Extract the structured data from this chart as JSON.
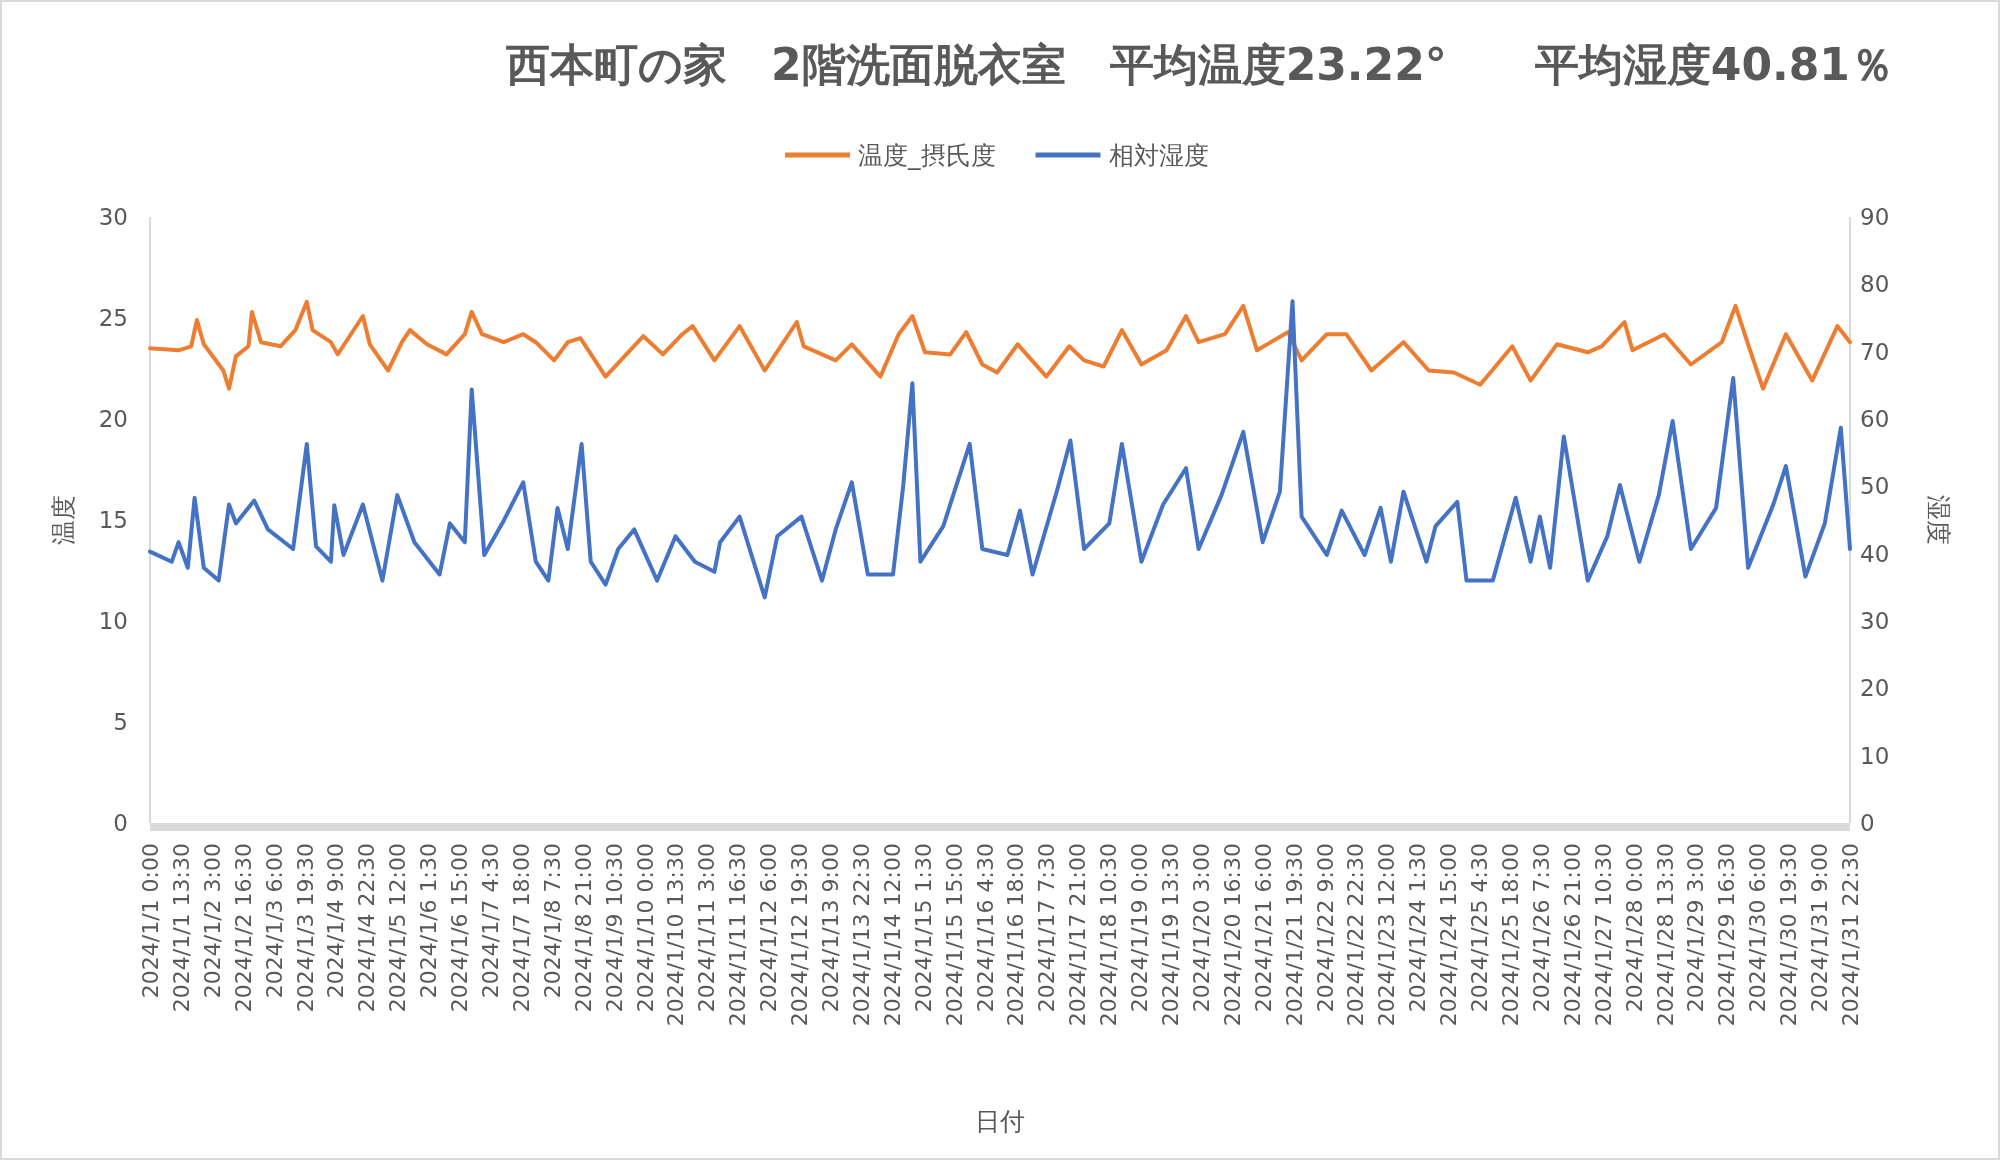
{
  "chart_data": {
    "type": "line",
    "title": "西本町の家　2階洗面脱衣室　平均温度23.22°　　平均湿度40.81％",
    "xlabel": "日付",
    "ylabel": "温度",
    "y2label": "湿度",
    "legend": "top",
    "xlim": [
      "2024-01-01T00:00",
      "2024-01-31T22:30"
    ],
    "ylim": [
      0,
      30
    ],
    "yticks": [
      0,
      5,
      10,
      15,
      20,
      25,
      30
    ],
    "y2lim": [
      0,
      90
    ],
    "y2ticks": [
      0,
      10,
      20,
      30,
      40,
      50,
      60,
      70,
      80,
      90
    ],
    "xticks": [
      {
        "value": "2024-01-01T00:00",
        "label": "2024/1/1 0:00"
      },
      {
        "value": "2024-01-01T13:30",
        "label": "2024/1/1 13:30"
      },
      {
        "value": "2024-01-02T03:00",
        "label": "2024/1/2 3:00"
      },
      {
        "value": "2024-01-02T16:30",
        "label": "2024/1/2 16:30"
      },
      {
        "value": "2024-01-03T06:00",
        "label": "2024/1/3 6:00"
      },
      {
        "value": "2024-01-03T19:30",
        "label": "2024/1/3 19:30"
      },
      {
        "value": "2024-01-04T09:00",
        "label": "2024/1/4 9:00"
      },
      {
        "value": "2024-01-04T22:30",
        "label": "2024/1/4 22:30"
      },
      {
        "value": "2024-01-05T12:00",
        "label": "2024/1/5 12:00"
      },
      {
        "value": "2024-01-06T01:30",
        "label": "2024/1/6 1:30"
      },
      {
        "value": "2024-01-06T15:00",
        "label": "2024/1/6 15:00"
      },
      {
        "value": "2024-01-07T04:30",
        "label": "2024/1/7 4:30"
      },
      {
        "value": "2024-01-07T18:00",
        "label": "2024/1/7 18:00"
      },
      {
        "value": "2024-01-08T07:30",
        "label": "2024/1/8 7:30"
      },
      {
        "value": "2024-01-08T21:00",
        "label": "2024/1/8 21:00"
      },
      {
        "value": "2024-01-09T10:30",
        "label": "2024/1/9 10:30"
      },
      {
        "value": "2024-01-10T00:00",
        "label": "2024/1/10 0:00"
      },
      {
        "value": "2024-01-10T13:30",
        "label": "2024/1/10 13:30"
      },
      {
        "value": "2024-01-11T03:00",
        "label": "2024/1/11 3:00"
      },
      {
        "value": "2024-01-11T16:30",
        "label": "2024/1/11 16:30"
      },
      {
        "value": "2024-01-12T06:00",
        "label": "2024/1/12 6:00"
      },
      {
        "value": "2024-01-12T19:30",
        "label": "2024/1/12 19:30"
      },
      {
        "value": "2024-01-13T09:00",
        "label": "2024/1/13 9:00"
      },
      {
        "value": "2024-01-13T22:30",
        "label": "2024/1/13 22:30"
      },
      {
        "value": "2024-01-14T12:00",
        "label": "2024/1/14 12:00"
      },
      {
        "value": "2024-01-15T01:30",
        "label": "2024/1/15 1:30"
      },
      {
        "value": "2024-01-15T15:00",
        "label": "2024/1/15 15:00"
      },
      {
        "value": "2024-01-16T04:30",
        "label": "2024/1/16 4:30"
      },
      {
        "value": "2024-01-16T18:00",
        "label": "2024/1/16 18:00"
      },
      {
        "value": "2024-01-17T07:30",
        "label": "2024/1/17 7:30"
      },
      {
        "value": "2024-01-17T21:00",
        "label": "2024/1/17 21:00"
      },
      {
        "value": "2024-01-18T10:30",
        "label": "2024/1/18 10:30"
      },
      {
        "value": "2024-01-19T00:00",
        "label": "2024/1/19 0:00"
      },
      {
        "value": "2024-01-19T13:30",
        "label": "2024/1/19 13:30"
      },
      {
        "value": "2024-01-20T03:00",
        "label": "2024/1/20 3:00"
      },
      {
        "value": "2024-01-20T16:30",
        "label": "2024/1/20 16:30"
      },
      {
        "value": "2024-01-21T06:00",
        "label": "2024/1/21 6:00"
      },
      {
        "value": "2024-01-21T19:30",
        "label": "2024/1/21 19:30"
      },
      {
        "value": "2024-01-22T09:00",
        "label": "2024/1/22 9:00"
      },
      {
        "value": "2024-01-22T22:30",
        "label": "2024/1/22 22:30"
      },
      {
        "value": "2024-01-23T12:00",
        "label": "2024/1/23 12:00"
      },
      {
        "value": "2024-01-24T01:30",
        "label": "2024/1/24 1:30"
      },
      {
        "value": "2024-01-24T15:00",
        "label": "2024/1/24 15:00"
      },
      {
        "value": "2024-01-25T04:30",
        "label": "2024/1/25 4:30"
      },
      {
        "value": "2024-01-25T18:00",
        "label": "2024/1/25 18:00"
      },
      {
        "value": "2024-01-26T07:30",
        "label": "2024/1/26 7:30"
      },
      {
        "value": "2024-01-26T21:00",
        "label": "2024/1/26 21:00"
      },
      {
        "value": "2024-01-27T10:30",
        "label": "2024/1/27 10:30"
      },
      {
        "value": "2024-01-28T00:00",
        "label": "2024/1/28 0:00"
      },
      {
        "value": "2024-01-28T13:30",
        "label": "2024/1/28 13:30"
      },
      {
        "value": "2024-01-29T03:00",
        "label": "2024/1/29 3:00"
      },
      {
        "value": "2024-01-29T16:30",
        "label": "2024/1/29 16:30"
      },
      {
        "value": "2024-01-30T06:00",
        "label": "2024/1/30 6:00"
      },
      {
        "value": "2024-01-30T19:30",
        "label": "2024/1/30 19:30"
      },
      {
        "value": "2024-01-31T09:00",
        "label": "2024/1/31 9:00"
      },
      {
        "value": "2024-01-31T22:30",
        "label": "2024/1/31 22:30"
      }
    ],
    "series": [
      {
        "name": "温度_摂氏度",
        "color": "#ed7d31",
        "x": [
          "2024-01-01T00:00",
          "2024-01-01T12:30",
          "2024-01-01T18:00",
          "2024-01-01T20:30",
          "2024-01-01T23:30",
          "2024-01-02T08:00",
          "2024-01-02T10:30",
          "2024-01-02T13:30",
          "2024-01-02T19:00",
          "2024-01-02T20:30",
          "2024-01-03T00:30",
          "2024-01-03T09:00",
          "2024-01-03T15:30",
          "2024-01-03T20:30",
          "2024-01-03T23:00",
          "2024-01-04T07:00",
          "2024-01-04T10:00",
          "2024-01-04T21:00",
          "2024-01-05T00:00",
          "2024-01-05T08:00",
          "2024-01-05T14:00",
          "2024-01-05T17:30",
          "2024-01-06T01:00",
          "2024-01-06T09:30",
          "2024-01-06T17:30",
          "2024-01-06T20:30",
          "2024-01-07T01:00",
          "2024-01-07T10:30",
          "2024-01-07T19:00",
          "2024-01-08T00:30",
          "2024-01-08T08:30",
          "2024-01-08T14:30",
          "2024-01-08T20:00",
          "2024-01-09T07:00",
          "2024-01-09T21:00",
          "2024-01-09T23:30",
          "2024-01-10T08:00",
          "2024-01-10T16:30",
          "2024-01-10T21:00",
          "2024-01-11T06:30",
          "2024-01-11T17:30",
          "2024-01-12T04:30",
          "2024-01-12T18:30",
          "2024-01-12T21:30",
          "2024-01-13T11:30",
          "2024-01-13T18:30",
          "2024-01-14T07:00",
          "2024-01-14T15:00",
          "2024-01-14T21:00",
          "2024-01-15T02:30",
          "2024-01-15T13:30",
          "2024-01-15T20:30",
          "2024-01-16T03:30",
          "2024-01-16T10:00",
          "2024-01-16T19:00",
          "2024-01-17T07:30",
          "2024-01-17T17:30",
          "2024-01-18T00:00",
          "2024-01-18T08:30",
          "2024-01-18T16:30",
          "2024-01-19T01:00",
          "2024-01-19T12:00",
          "2024-01-19T20:30",
          "2024-01-20T02:00",
          "2024-01-20T13:30",
          "2024-01-20T21:30",
          "2024-01-21T03:30",
          "2024-01-21T17:00",
          "2024-01-21T23:00",
          "2024-01-22T10:00",
          "2024-01-22T18:30",
          "2024-01-23T05:30",
          "2024-01-23T19:30",
          "2024-01-24T06:30",
          "2024-01-24T17:30",
          "2024-01-25T05:00",
          "2024-01-25T19:00",
          "2024-01-26T03:00",
          "2024-01-26T14:30",
          "2024-01-27T04:00",
          "2024-01-27T10:00",
          "2024-01-27T20:00",
          "2024-01-27T23:30",
          "2024-01-28T13:30",
          "2024-01-29T01:00",
          "2024-01-29T14:30",
          "2024-01-29T20:30",
          "2024-01-30T02:00",
          "2024-01-30T08:30",
          "2024-01-30T18:30",
          "2024-01-31T06:00",
          "2024-01-31T17:00",
          "2024-01-31T22:30"
        ],
        "values": [
          23.5,
          23.4,
          23.6,
          24.9,
          23.7,
          22.4,
          21.5,
          23.1,
          23.6,
          25.3,
          23.8,
          23.6,
          24.4,
          25.8,
          24.4,
          23.8,
          23.2,
          25.1,
          23.7,
          22.4,
          23.8,
          24.4,
          23.7,
          23.2,
          24.2,
          25.3,
          24.2,
          23.8,
          24.2,
          23.8,
          22.9,
          23.8,
          24,
          22.1,
          23.8,
          24.1,
          23.2,
          24.2,
          24.6,
          22.9,
          24.6,
          22.4,
          24.8,
          23.6,
          22.9,
          23.7,
          22.1,
          24.2,
          25.1,
          23.3,
          23.2,
          24.3,
          22.7,
          22.3,
          23.7,
          22.1,
          23.6,
          22.9,
          22.6,
          24.4,
          22.7,
          23.4,
          25.1,
          23.8,
          24.2,
          25.6,
          23.4,
          24.3,
          22.9,
          24.2,
          24.2,
          22.4,
          23.8,
          22.4,
          22.3,
          21.7,
          23.6,
          21.9,
          23.7,
          23.3,
          23.6,
          24.8,
          23.4,
          24.2,
          22.7,
          23.8,
          25.6,
          23.7,
          21.5,
          24.2,
          21.9,
          24.6,
          23.8
        ]
      },
      {
        "name": "相対湿度",
        "color": "#4472c4",
        "axis": "y2",
        "x": [
          "2024-01-01T00:00",
          "2024-01-01T09:30",
          "2024-01-01T12:30",
          "2024-01-01T16:30",
          "2024-01-01T19:30",
          "2024-01-01T23:30",
          "2024-01-02T06:00",
          "2024-01-02T10:30",
          "2024-01-02T13:30",
          "2024-01-02T21:30",
          "2024-01-03T03:30",
          "2024-01-03T14:30",
          "2024-01-03T20:30",
          "2024-01-04T00:30",
          "2024-01-04T07:00",
          "2024-01-04T08:30",
          "2024-01-04T12:30",
          "2024-01-04T21:00",
          "2024-01-05T05:30",
          "2024-01-05T12:00",
          "2024-01-05T19:30",
          "2024-01-06T06:30",
          "2024-01-06T11:00",
          "2024-01-06T17:30",
          "2024-01-06T20:30",
          "2024-01-07T02:00",
          "2024-01-07T10:30",
          "2024-01-07T19:00",
          "2024-01-08T00:30",
          "2024-01-08T06:00",
          "2024-01-08T10:00",
          "2024-01-08T14:30",
          "2024-01-08T20:30",
          "2024-01-09T00:30",
          "2024-01-09T07:00",
          "2024-01-09T12:30",
          "2024-01-09T19:30",
          "2024-01-10T05:30",
          "2024-01-10T13:30",
          "2024-01-10T22:00",
          "2024-01-11T06:30",
          "2024-01-11T09:00",
          "2024-01-11T17:30",
          "2024-01-12T04:30",
          "2024-01-12T10:00",
          "2024-01-12T20:30",
          "2024-01-13T05:30",
          "2024-01-13T11:30",
          "2024-01-13T18:30",
          "2024-01-14T01:30",
          "2024-01-14T12:30",
          "2024-01-14T17:00",
          "2024-01-14T21:00",
          "2024-01-15T00:30",
          "2024-01-15T10:30",
          "2024-01-15T22:00",
          "2024-01-16T03:30",
          "2024-01-16T14:30",
          "2024-01-16T20:00",
          "2024-01-17T01:30",
          "2024-01-17T12:00",
          "2024-01-17T18:00",
          "2024-01-18T00:00",
          "2024-01-18T11:00",
          "2024-01-18T16:30",
          "2024-01-19T01:00",
          "2024-01-19T10:30",
          "2024-01-19T20:30",
          "2024-01-20T02:00",
          "2024-01-20T12:00",
          "2024-01-20T21:30",
          "2024-01-21T06:00",
          "2024-01-21T13:30",
          "2024-01-21T19:00",
          "2024-01-21T23:00",
          "2024-01-22T10:00",
          "2024-01-22T16:30",
          "2024-01-23T02:30",
          "2024-01-23T09:30",
          "2024-01-23T14:00",
          "2024-01-23T19:30",
          "2024-01-24T05:30",
          "2024-01-24T09:30",
          "2024-01-24T19:00",
          "2024-01-24T23:00",
          "2024-01-25T10:30",
          "2024-01-25T20:30",
          "2024-01-26T03:00",
          "2024-01-26T07:00",
          "2024-01-26T11:30",
          "2024-01-26T17:30",
          "2024-01-27T04:00",
          "2024-01-27T12:30",
          "2024-01-27T18:00",
          "2024-01-28T02:30",
          "2024-01-28T11:00",
          "2024-01-28T17:00",
          "2024-01-29T01:00",
          "2024-01-29T12:00",
          "2024-01-29T19:30",
          "2024-01-30T02:00",
          "2024-01-30T13:00",
          "2024-01-30T18:30",
          "2024-01-31T03:00",
          "2024-01-31T11:30",
          "2024-01-31T18:30",
          "2024-01-31T22:30"
        ],
        "values": [
          40.3,
          38.8,
          41.7,
          37.9,
          48.3,
          37.9,
          36,
          47.3,
          44.5,
          47.9,
          43.6,
          40.7,
          56.3,
          41.1,
          38.8,
          47.2,
          39.8,
          47.3,
          36,
          48.7,
          41.7,
          36.9,
          44.5,
          41.7,
          64.4,
          39.8,
          44.9,
          50.6,
          38.8,
          36,
          46.8,
          40.7,
          56.3,
          38.8,
          35.4,
          40.7,
          43.6,
          36,
          42.6,
          38.8,
          37.3,
          41.7,
          45.5,
          33.5,
          42.6,
          45.5,
          36,
          43.6,
          50.6,
          36.9,
          36.9,
          50.2,
          65.3,
          38.8,
          44.1,
          56.3,
          40.7,
          39.8,
          46.4,
          36.9,
          49.2,
          56.8,
          40.7,
          44.5,
          56.3,
          38.8,
          47.3,
          52.7,
          40.7,
          48.7,
          58.1,
          41.7,
          49.2,
          77.5,
          45.5,
          39.8,
          46.4,
          39.8,
          46.8,
          38.8,
          49.2,
          38.8,
          44.1,
          47.7,
          36,
          36,
          48.3,
          38.8,
          45.5,
          37.9,
          57.4,
          36,
          42.6,
          50.2,
          38.8,
          48.7,
          59.7,
          40.7,
          46.8,
          66.1,
          37.9,
          47.3,
          53,
          36.6,
          44.5,
          58.7,
          40.7
        ]
      }
    ]
  }
}
